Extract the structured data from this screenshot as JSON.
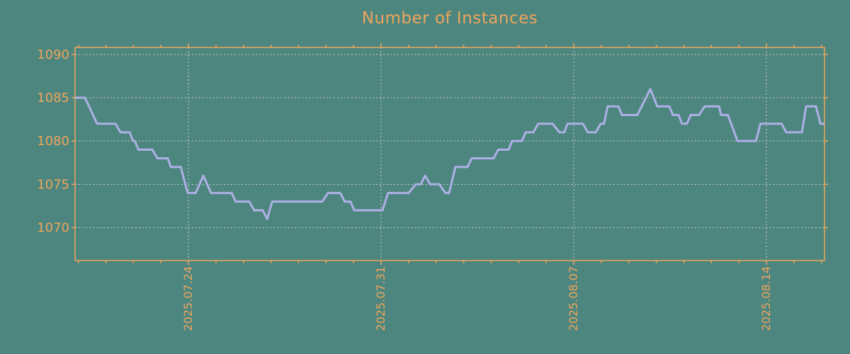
{
  "title": "Number of Instances",
  "colors": {
    "background": "#4d867f",
    "accent": "#eda55c",
    "line": "#aeb0e6",
    "grid": "#c9cec9"
  },
  "chart_data": {
    "type": "line",
    "title": "Number of Instances",
    "xlabel": "",
    "ylabel": "",
    "grid": true,
    "legend": "none",
    "ylim": [
      1066.2,
      1090.8
    ],
    "yticks": [
      1070,
      1075,
      1080,
      1085,
      1090
    ],
    "ytick_labels": [
      "1070",
      "1075",
      "1080",
      "1085",
      "1090"
    ],
    "x_unit": "days relative to 2025.07.24",
    "xlim_days": [
      -4.12,
      23.11
    ],
    "x_major_ticks_days": [
      0,
      7,
      14,
      21
    ],
    "x_major_labels": [
      "2025.07.24",
      "2025.07.31",
      "2025.08.07",
      "2025.08.14"
    ],
    "x_minor_tick_interval_days": 1,
    "series": [
      {
        "name": "instances",
        "points": [
          [
            -4.12,
            1085
          ],
          [
            -3.76,
            1085
          ],
          [
            -3.32,
            1082
          ],
          [
            -2.65,
            1082
          ],
          [
            -2.47,
            1081
          ],
          [
            -2.13,
            1081
          ],
          [
            -2.02,
            1080
          ],
          [
            -1.95,
            1080
          ],
          [
            -1.82,
            1079
          ],
          [
            -1.31,
            1079
          ],
          [
            -1.13,
            1078
          ],
          [
            -0.75,
            1078
          ],
          [
            -0.64,
            1077
          ],
          [
            -0.28,
            1077
          ],
          [
            -0.03,
            1074
          ],
          [
            0.26,
            1074
          ],
          [
            0.54,
            1076
          ],
          [
            0.82,
            1074
          ],
          [
            1.57,
            1074
          ],
          [
            1.72,
            1073
          ],
          [
            2.21,
            1073
          ],
          [
            2.39,
            1072
          ],
          [
            2.7,
            1072
          ],
          [
            2.86,
            1071
          ],
          [
            3.04,
            1073
          ],
          [
            4.86,
            1073
          ],
          [
            5.07,
            1074
          ],
          [
            5.51,
            1074
          ],
          [
            5.68,
            1073
          ],
          [
            5.89,
            1073
          ],
          [
            6.02,
            1072
          ],
          [
            7.05,
            1072
          ],
          [
            7.25,
            1074
          ],
          [
            8.0,
            1074
          ],
          [
            8.26,
            1075
          ],
          [
            8.44,
            1075
          ],
          [
            8.6,
            1076
          ],
          [
            8.78,
            1075
          ],
          [
            9.11,
            1075
          ],
          [
            9.34,
            1074
          ],
          [
            9.47,
            1074
          ],
          [
            9.7,
            1077
          ],
          [
            10.14,
            1077
          ],
          [
            10.29,
            1078
          ],
          [
            11.09,
            1078
          ],
          [
            11.25,
            1079
          ],
          [
            11.63,
            1079
          ],
          [
            11.76,
            1080
          ],
          [
            12.12,
            1080
          ],
          [
            12.25,
            1081
          ],
          [
            12.53,
            1081
          ],
          [
            12.71,
            1082
          ],
          [
            13.23,
            1082
          ],
          [
            13.48,
            1081
          ],
          [
            13.66,
            1081
          ],
          [
            13.77,
            1082
          ],
          [
            14.33,
            1082
          ],
          [
            14.51,
            1081
          ],
          [
            14.8,
            1081
          ],
          [
            14.98,
            1082
          ],
          [
            15.1,
            1082
          ],
          [
            15.23,
            1084
          ],
          [
            15.62,
            1084
          ],
          [
            15.75,
            1083
          ],
          [
            16.31,
            1083
          ],
          [
            16.78,
            1086
          ],
          [
            17.03,
            1084
          ],
          [
            17.47,
            1084
          ],
          [
            17.6,
            1083
          ],
          [
            17.81,
            1083
          ],
          [
            17.93,
            1082
          ],
          [
            18.11,
            1082
          ],
          [
            18.25,
            1083
          ],
          [
            18.55,
            1083
          ],
          [
            18.76,
            1084
          ],
          [
            19.28,
            1084
          ],
          [
            19.35,
            1083
          ],
          [
            19.6,
            1083
          ],
          [
            19.95,
            1080
          ],
          [
            20.62,
            1080
          ],
          [
            20.78,
            1082
          ],
          [
            21.55,
            1082
          ],
          [
            21.72,
            1081
          ],
          [
            22.29,
            1081
          ],
          [
            22.44,
            1084
          ],
          [
            22.8,
            1084
          ],
          [
            22.96,
            1082
          ],
          [
            23.11,
            1082
          ]
        ]
      }
    ]
  }
}
